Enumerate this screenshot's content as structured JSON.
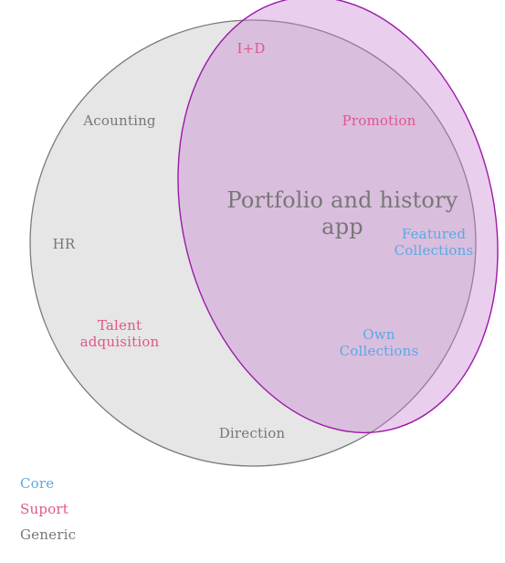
{
  "colors": {
    "core": "#5aa9e6",
    "support": "#e0568c",
    "generic": "#777777",
    "big_circle_fill": "#e6e6e6",
    "big_circle_stroke": "#7a7a7a",
    "ellipse_fill": "#c77fcf",
    "ellipse_stroke": "#9b1aa8"
  },
  "shapes": {
    "domain_circle": {
      "label": ""
    },
    "app_ellipse": {
      "label": "Portfolio and history app"
    }
  },
  "labels": {
    "app_line1": "Portfolio and history",
    "app_line2": "app",
    "i_d": "I+D",
    "promotion": "Promotion",
    "acounting": "Acounting",
    "featured_line1": "Featured",
    "featured_line2": "Collections",
    "hr": "HR",
    "talent_line1": "Talent",
    "talent_line2": "adquisition",
    "own_line1": "Own",
    "own_line2": "Collections",
    "direction": "Direction"
  },
  "legend": [
    {
      "label": "Core",
      "category": "core"
    },
    {
      "label": "Suport",
      "category": "support"
    },
    {
      "label": "Generic",
      "category": "generic"
    }
  ]
}
